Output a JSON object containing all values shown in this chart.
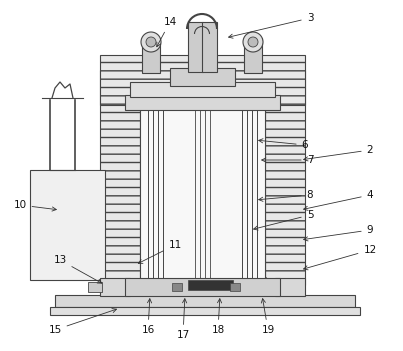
{
  "background_color": "#ffffff",
  "line_color": "#444444",
  "fig_width": 4.03,
  "fig_height": 3.51,
  "dpi": 100
}
